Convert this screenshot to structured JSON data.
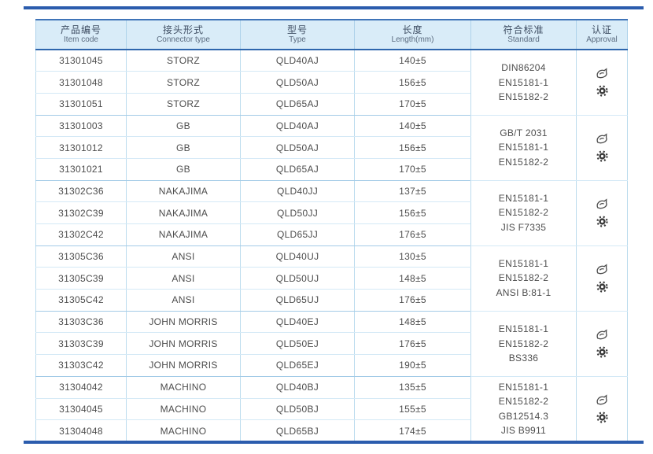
{
  "colors": {
    "rule_blue": "#2b5cad",
    "header_bg": "#d9ecf8",
    "header_border": "#2e66ad",
    "row_line": "#d4e9f6",
    "group_line": "#a3cbe7",
    "column_line": "#bcdcee",
    "body_text": "#4d4d4d",
    "header_text": "#3f4e63"
  },
  "table": {
    "columns": [
      {
        "zh": "产品编号",
        "en": "Item code"
      },
      {
        "zh": "接头形式",
        "en": "Connector type"
      },
      {
        "zh": "型号",
        "en": "Type"
      },
      {
        "zh": "长度",
        "en": "Length(mm)"
      },
      {
        "zh": "符合标准",
        "en": "Standard"
      },
      {
        "zh": "认证",
        "en": "Approval"
      }
    ],
    "approval_icon_names": [
      "approval-logo-icon",
      "wheelmark-seal-icon"
    ],
    "groups": [
      {
        "rows": [
          {
            "item_code": "31301045",
            "connector": "STORZ",
            "type": "QLD40AJ",
            "length": "140±5"
          },
          {
            "item_code": "31301048",
            "connector": "STORZ",
            "type": "QLD50AJ",
            "length": "156±5"
          },
          {
            "item_code": "31301051",
            "connector": "STORZ",
            "type": "QLD65AJ",
            "length": "170±5"
          }
        ],
        "standards": [
          "DIN86204",
          "EN15181-1",
          "EN15182-2"
        ]
      },
      {
        "rows": [
          {
            "item_code": "31301003",
            "connector": "GB",
            "type": "QLD40AJ",
            "length": "140±5"
          },
          {
            "item_code": "31301012",
            "connector": "GB",
            "type": "QLD50AJ",
            "length": "156±5"
          },
          {
            "item_code": "31301021",
            "connector": "GB",
            "type": "QLD65AJ",
            "length": "170±5"
          }
        ],
        "standards": [
          "GB/T 2031",
          "EN15181-1",
          "EN15182-2"
        ]
      },
      {
        "rows": [
          {
            "item_code": "31302C36",
            "connector": "NAKAJIMA",
            "type": "QLD40JJ",
            "length": "137±5"
          },
          {
            "item_code": "31302C39",
            "connector": "NAKAJIMA",
            "type": "QLD50JJ",
            "length": "156±5"
          },
          {
            "item_code": "31302C42",
            "connector": "NAKAJIMA",
            "type": "QLD65JJ",
            "length": "176±5"
          }
        ],
        "standards": [
          "EN15181-1",
          "EN15182-2",
          "JIS F7335"
        ]
      },
      {
        "rows": [
          {
            "item_code": "31305C36",
            "connector": "ANSI",
            "type": "QLD40UJ",
            "length": "130±5"
          },
          {
            "item_code": "31305C39",
            "connector": "ANSI",
            "type": "QLD50UJ",
            "length": "148±5"
          },
          {
            "item_code": "31305C42",
            "connector": "ANSI",
            "type": "QLD65UJ",
            "length": "176±5"
          }
        ],
        "standards": [
          "EN15181-1",
          "EN15182-2",
          "ANSI B:81-1"
        ]
      },
      {
        "rows": [
          {
            "item_code": "31303C36",
            "connector": "JOHN MORRIS",
            "type": "QLD40EJ",
            "length": "148±5"
          },
          {
            "item_code": "31303C39",
            "connector": "JOHN MORRIS",
            "type": "QLD50EJ",
            "length": "176±5"
          },
          {
            "item_code": "31303C42",
            "connector": "JOHN MORRIS",
            "type": "QLD65EJ",
            "length": "190±5"
          }
        ],
        "standards": [
          "EN15181-1",
          "EN15182-2",
          "BS336"
        ]
      },
      {
        "rows": [
          {
            "item_code": "31304042",
            "connector": "MACHINO",
            "type": "QLD40BJ",
            "length": "135±5"
          },
          {
            "item_code": "31304045",
            "connector": "MACHINO",
            "type": "QLD50BJ",
            "length": "155±5"
          },
          {
            "item_code": "31304048",
            "connector": "MACHINO",
            "type": "QLD65BJ",
            "length": "174±5"
          }
        ],
        "standards": [
          "EN15181-1",
          "EN15182-2",
          "GB12514.3",
          "JIS B9911"
        ]
      }
    ]
  }
}
